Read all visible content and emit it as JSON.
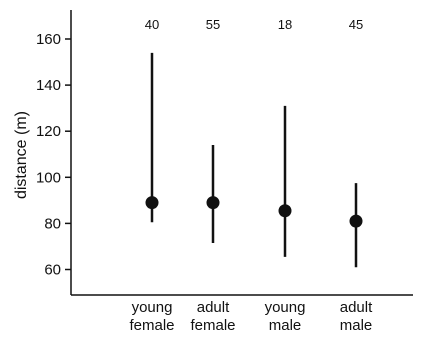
{
  "chart_data": {
    "type": "scatter",
    "title": "",
    "xlabel": "",
    "ylabel": "distance (m)",
    "ylim": [
      50,
      168
    ],
    "yticks": [
      60,
      80,
      100,
      120,
      140,
      160
    ],
    "grid": false,
    "categories": [
      [
        "young",
        "female"
      ],
      [
        "adult",
        "female"
      ],
      [
        "young",
        "male"
      ],
      [
        "adult",
        "male"
      ]
    ],
    "n_labels": [
      "40",
      "55",
      "18",
      "45"
    ],
    "values": [
      89,
      89,
      85.5,
      81
    ],
    "upper": [
      154,
      114,
      131,
      97.5
    ],
    "lower": [
      80.5,
      71.5,
      65.5,
      61
    ],
    "colors": {
      "marker": "#111111",
      "axis": "#111111"
    }
  }
}
